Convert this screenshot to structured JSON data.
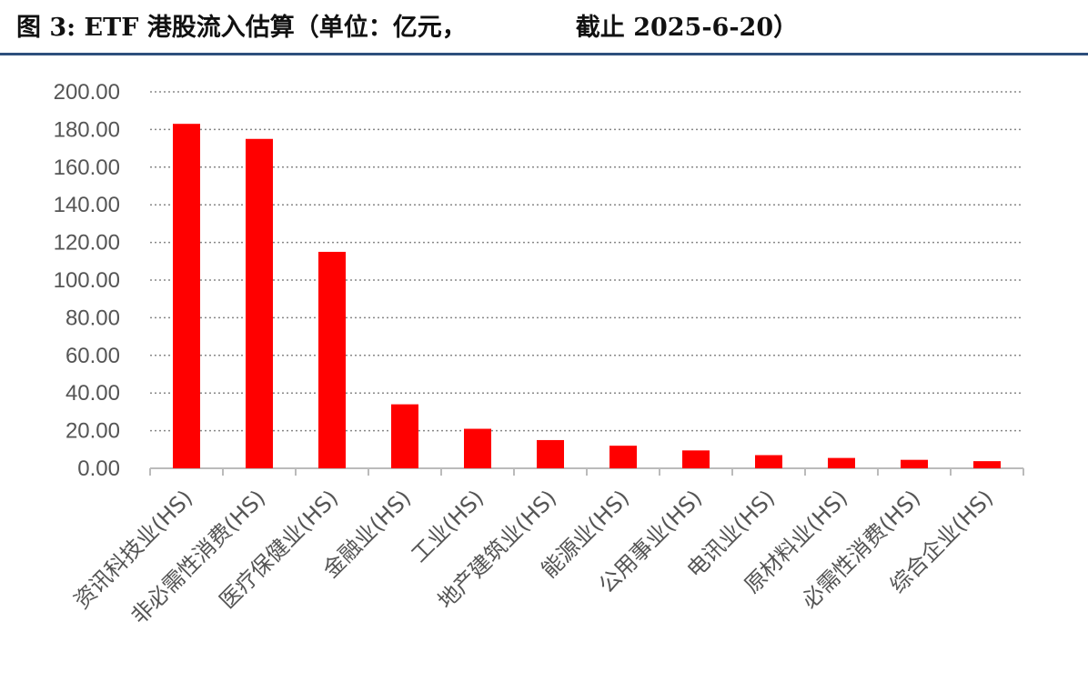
{
  "header": {
    "title_prefix": "图 3: ETF 港股流入估算（单位：亿元，",
    "title_suffix": "截止 2025-6-20）"
  },
  "colors": {
    "bar": "#ff0000",
    "grid": "#888888",
    "axis": "#bbbbbb",
    "rule": "#2d4f7c"
  },
  "chart_data": {
    "type": "bar",
    "title": "",
    "xlabel": "",
    "ylabel": "",
    "ylim": [
      0,
      200
    ],
    "yticks": [
      "0.00",
      "20.00",
      "40.00",
      "60.00",
      "80.00",
      "100.00",
      "120.00",
      "140.00",
      "160.00",
      "180.00",
      "200.00"
    ],
    "grid": true,
    "legend": "none",
    "categories": [
      "资讯科技业(HS)",
      "非必需性消费(HS)",
      "医疗保健业(HS)",
      "金融业(HS)",
      "工业(HS)",
      "地产建筑业(HS)",
      "能源业(HS)",
      "公用事业(HS)",
      "电讯业(HS)",
      "原材料业(HS)",
      "必需性消费(HS)",
      "综合企业(HS)"
    ],
    "values": [
      183,
      175,
      115,
      34,
      21,
      15,
      12,
      9.5,
      7,
      5.5,
      4.5,
      3.8
    ]
  }
}
